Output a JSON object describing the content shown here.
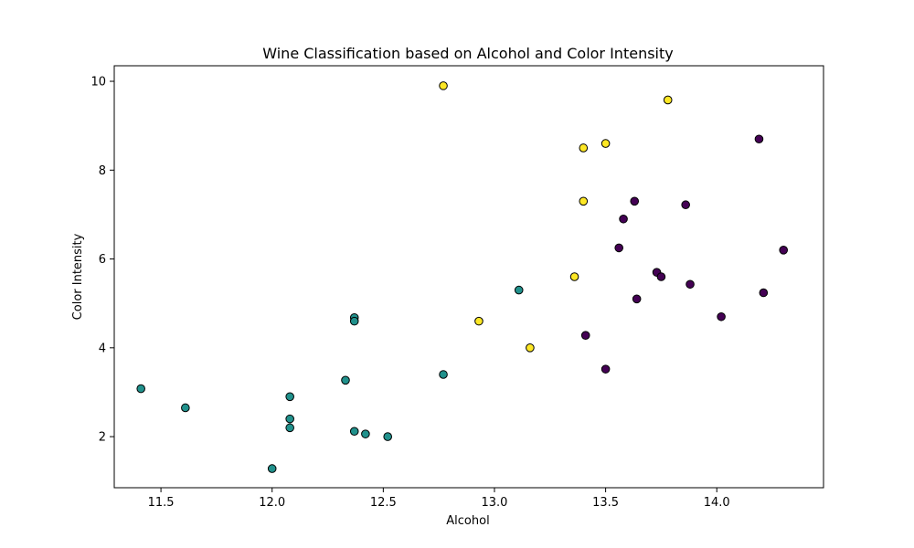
{
  "chart_data": {
    "type": "scatter",
    "title": "Wine Classification based on Alcohol and Color Intensity",
    "xlabel": "Alcohol",
    "ylabel": "Color Intensity",
    "xlim": [
      11.29,
      14.48
    ],
    "ylim": [
      0.85,
      10.35
    ],
    "xticks": [
      11.5,
      12.0,
      12.5,
      13.0,
      13.5,
      14.0
    ],
    "xtick_labels": [
      "11.5",
      "12.0",
      "12.5",
      "13.0",
      "13.5",
      "14.0"
    ],
    "yticks": [
      2,
      4,
      6,
      8,
      10
    ],
    "ytick_labels": [
      "2",
      "4",
      "6",
      "8",
      "10"
    ],
    "grid": false,
    "legend": null,
    "marker_edge_color": "#000000",
    "series": [
      {
        "color": "#440154",
        "points": [
          [
            14.19,
            8.7
          ],
          [
            14.3,
            6.2
          ],
          [
            13.86,
            7.22
          ],
          [
            13.63,
            7.3
          ],
          [
            13.58,
            6.9
          ],
          [
            13.56,
            6.25
          ],
          [
            13.73,
            5.7
          ],
          [
            13.75,
            5.6
          ],
          [
            13.88,
            5.43
          ],
          [
            14.21,
            5.24
          ],
          [
            13.64,
            5.1
          ],
          [
            14.02,
            4.7
          ],
          [
            13.41,
            4.28
          ],
          [
            13.5,
            3.52
          ]
        ]
      },
      {
        "color": "#21918c",
        "points": [
          [
            11.41,
            3.08
          ],
          [
            11.61,
            2.65
          ],
          [
            12.0,
            1.28
          ],
          [
            12.08,
            2.9
          ],
          [
            12.08,
            2.4
          ],
          [
            12.08,
            2.2
          ],
          [
            12.33,
            3.27
          ],
          [
            12.37,
            4.68
          ],
          [
            12.37,
            4.6
          ],
          [
            12.37,
            2.12
          ],
          [
            12.42,
            2.06
          ],
          [
            12.52,
            2.0
          ],
          [
            12.77,
            3.4
          ],
          [
            13.11,
            5.3
          ]
        ]
      },
      {
        "color": "#fde725",
        "points": [
          [
            12.77,
            9.9
          ],
          [
            13.78,
            9.58
          ],
          [
            13.4,
            8.5
          ],
          [
            13.5,
            8.6
          ],
          [
            13.4,
            7.3
          ],
          [
            13.36,
            5.6
          ],
          [
            12.93,
            4.6
          ],
          [
            13.16,
            4.0
          ]
        ]
      }
    ]
  }
}
